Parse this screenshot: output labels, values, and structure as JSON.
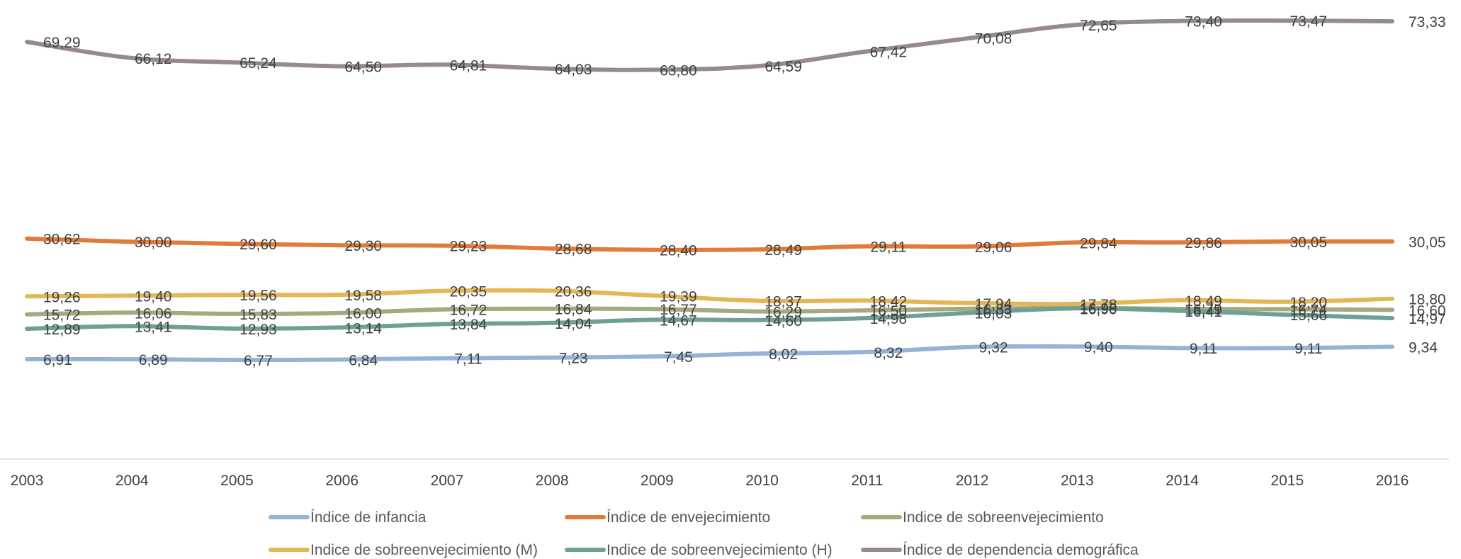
{
  "chart_data": {
    "type": "line",
    "title": "",
    "xlabel": "",
    "ylabel": "",
    "ylim": [
      0,
      75
    ],
    "grid": false,
    "legend_position": "bottom",
    "categories": [
      "2003",
      "2004",
      "2005",
      "2006",
      "2007",
      "2008",
      "2009",
      "2010",
      "2011",
      "2012",
      "2013",
      "2014",
      "2015",
      "2016"
    ],
    "series": [
      {
        "name": "Índice de infancia",
        "color": "#95b3d7",
        "values": [
          6.91,
          6.89,
          6.77,
          6.84,
          7.11,
          7.23,
          7.45,
          8.02,
          8.32,
          9.32,
          9.4,
          9.11,
          9.11,
          9.34
        ],
        "labels": [
          "6,91",
          "6,89",
          "6,77",
          "6,84",
          "7,11",
          "7,23",
          "7,45",
          "8,02",
          "8,32",
          "9,32",
          "9,40",
          "9,11",
          "9,11",
          "9,34"
        ]
      },
      {
        "name": "Índice de envejecimiento",
        "color": "#e07b39",
        "values": [
          30.62,
          30.0,
          29.6,
          29.3,
          29.23,
          28.68,
          28.4,
          28.49,
          29.11,
          29.06,
          29.84,
          29.86,
          30.05,
          30.05
        ],
        "labels": [
          "30,62",
          "30,00",
          "29,60",
          "29,30",
          "29,23",
          "28,68",
          "28,40",
          "28,49",
          "29,11",
          "29,06",
          "29,84",
          "29,86",
          "30,05",
          "30,05"
        ]
      },
      {
        "name": "Indice de sobreenvejecimiento",
        "color": "#a5a97e",
        "values": [
          15.72,
          16.06,
          15.83,
          16.0,
          16.72,
          16.84,
          16.77,
          16.29,
          16.5,
          16.83,
          16.98,
          16.79,
          16.74,
          16.6
        ],
        "labels": [
          "15,72",
          "16,06",
          "15,83",
          "16,00",
          "16,72",
          "16,84",
          "16,77",
          "16,29",
          "16,50",
          "16,83",
          "16,98",
          "16,79",
          "16,74",
          "16,60"
        ]
      },
      {
        "name": "Indice de sobreenvejecimiento (M)",
        "color": "#e2b857",
        "values": [
          19.26,
          19.4,
          19.56,
          19.58,
          20.35,
          20.36,
          19.39,
          18.37,
          18.42,
          17.94,
          17.78,
          18.49,
          18.2,
          18.8
        ],
        "labels": [
          "19,26",
          "19,40",
          "19,56",
          "19,58",
          "20,35",
          "20,36",
          "19,39",
          "18,37",
          "18,42",
          "17,94",
          "17,78",
          "18,49",
          "18,20",
          "18,80"
        ]
      },
      {
        "name": "Indice de sobreenvejecimiento (H)",
        "color": "#6fa095",
        "values": [
          12.89,
          13.41,
          12.93,
          13.14,
          13.84,
          14.04,
          14.67,
          14.6,
          14.98,
          16.03,
          16.9,
          16.41,
          15.66,
          14.97
        ],
        "labels": [
          "12,89",
          "13,41",
          "12,93",
          "13,14",
          "13,84",
          "14,04",
          "14,67",
          "14,60",
          "14,98",
          "16,03",
          "16,90",
          "16,41",
          "15,66",
          "14,97"
        ]
      },
      {
        "name": "Índice de dependencia demográfica",
        "color": "#958b8d",
        "values": [
          69.29,
          66.12,
          65.24,
          64.5,
          64.81,
          64.03,
          63.8,
          64.59,
          67.42,
          70.08,
          72.65,
          73.4,
          73.47,
          73.33
        ],
        "labels": [
          "69,29",
          "66,12",
          "65,24",
          "64,50",
          "64,81",
          "64,03",
          "63,80",
          "64,59",
          "67,42",
          "70,08",
          "72,65",
          "73,40",
          "73,47",
          "73,33"
        ]
      }
    ]
  }
}
